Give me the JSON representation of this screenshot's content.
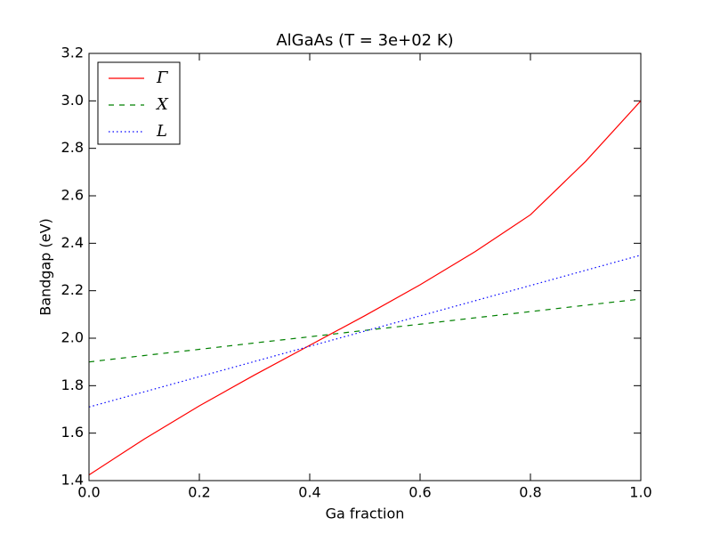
{
  "chart_data": {
    "type": "line",
    "title": "AlGaAs (T = 3e+02 K)",
    "xlabel": "Ga fraction",
    "ylabel": "Bandgap (eV)",
    "x": [
      0,
      0.1,
      0.2,
      0.3,
      0.4,
      0.5,
      0.6,
      0.7,
      0.8,
      0.9,
      1
    ],
    "series": [
      {
        "name": "Γ",
        "color": "#ff0000",
        "linestyle": "solid",
        "values": [
          1.424,
          1.575,
          1.715,
          1.845,
          1.97,
          2.095,
          2.225,
          2.365,
          2.52,
          2.745,
          3.0
        ]
      },
      {
        "name": "X",
        "color": "#008000",
        "linestyle": "dashed",
        "values": [
          1.9,
          1.927,
          1.953,
          1.98,
          2.006,
          2.033,
          2.059,
          2.086,
          2.112,
          2.139,
          2.165
        ]
      },
      {
        "name": "L",
        "color": "#0000ff",
        "linestyle": "dotted",
        "values": [
          1.71,
          1.774,
          1.838,
          1.902,
          1.966,
          2.03,
          2.094,
          2.158,
          2.222,
          2.286,
          2.35
        ]
      }
    ],
    "xlim": [
      0,
      1
    ],
    "ylim": [
      1.4,
      3.2
    ],
    "xticks": [
      {
        "value": 0,
        "label": "0.0"
      },
      0.2,
      0.4,
      0.6,
      0.8,
      {
        "value": 1,
        "label": "1.0"
      }
    ],
    "yticks": [
      1.4,
      1.6,
      1.8,
      {
        "value": 2,
        "label": "2.0"
      },
      2.2,
      2.4,
      2.6,
      2.8,
      {
        "value": 3,
        "label": "3.0"
      },
      3.2
    ],
    "legend": "upper left"
  }
}
